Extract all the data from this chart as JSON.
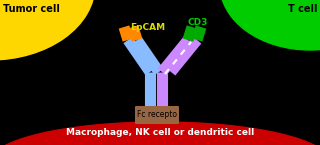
{
  "bg_color": "#000000",
  "tumor_cell_color": "#FFD700",
  "tcell_color": "#00CC00",
  "macrophage_color": "#CC0000",
  "ab_left_color": "#88BBFF",
  "ab_right_color": "#CC88FF",
  "fab_left_tip_color": "#FF8800",
  "fab_right_tip_color": "#00AA00",
  "fc_color": "#996644",
  "label_tumor": "Tumor cell",
  "label_tcell": "T cell",
  "label_epcam": "EpCAM",
  "label_cd3": "CD3",
  "label_fc": "Fc recepto",
  "label_macro": "Macrophage, NK cell or dendritic cell",
  "figsize": [
    3.2,
    1.45
  ],
  "dpi": 100
}
